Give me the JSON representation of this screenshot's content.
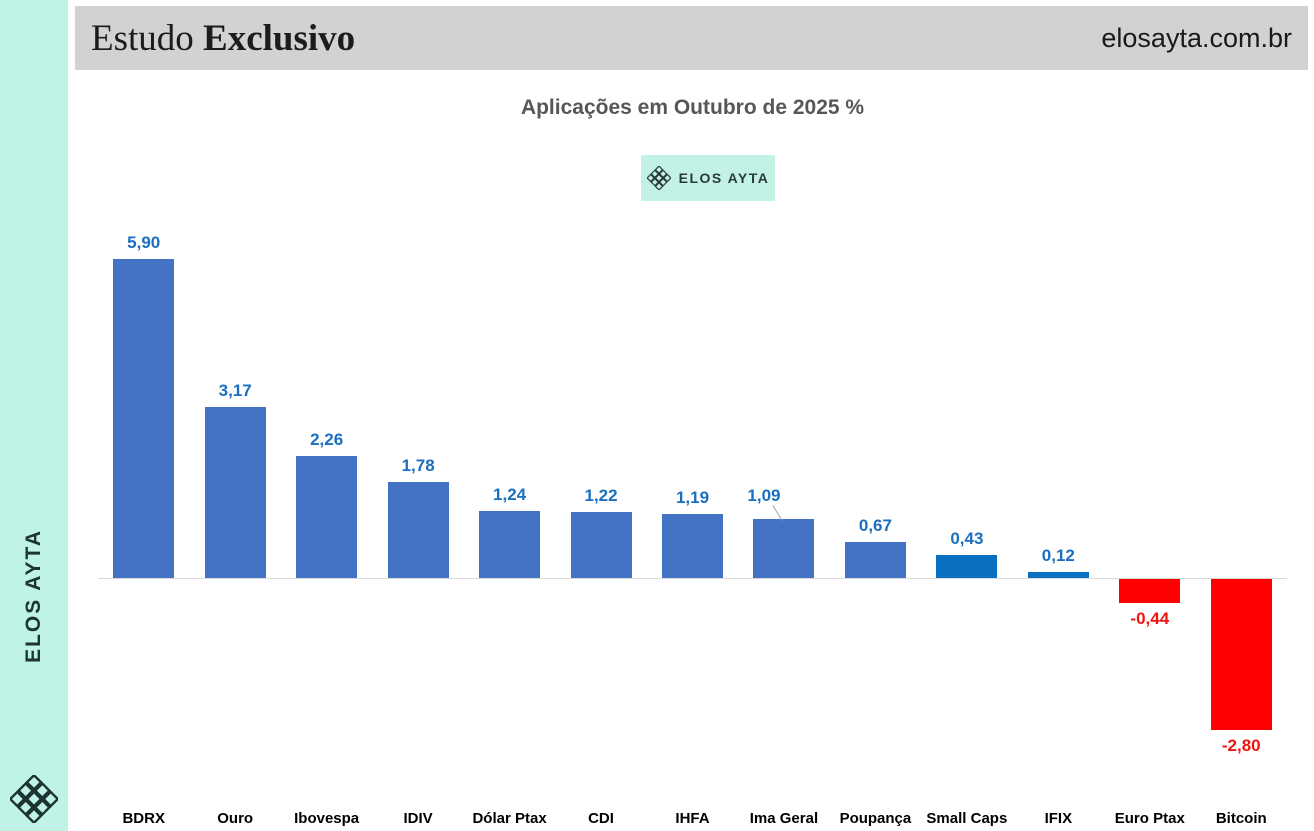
{
  "sidebar": {
    "brand": "ELOS AYTA",
    "logo_icon": "woven-diamond-lattice",
    "bg": "#bff3e6"
  },
  "header": {
    "title_regular": "Estudo ",
    "title_bold": "Exclusivo",
    "site": "elosayta.com.br",
    "bg": "#d2d2d2"
  },
  "badge": {
    "label": "ELOS AYTA",
    "logo_icon": "woven-diamond-lattice",
    "bg": "#c2f2e5"
  },
  "chart_data": {
    "type": "bar",
    "title": "Aplicações em Outubro de 2025 %",
    "categories": [
      "BDRX",
      "Ouro",
      "Ibovespa",
      "IDIV",
      "Dólar Ptax",
      "CDI",
      "IHFA",
      "Ima Geral",
      "Poupança",
      "Small Caps",
      "IFIX",
      "Euro Ptax",
      "Bitcoin"
    ],
    "values": [
      5.9,
      3.17,
      2.26,
      1.78,
      1.24,
      1.22,
      1.19,
      1.09,
      0.67,
      0.43,
      0.12,
      -0.44,
      -2.8
    ],
    "value_labels": [
      "5,90",
      "3,17",
      "2,26",
      "1,78",
      "1,24",
      "1,22",
      "1,19",
      "1,09",
      "0,67",
      "0,43",
      "0,12",
      "-0,44",
      "-2,80"
    ],
    "bar_colors": [
      "#4472C4",
      "#4472C4",
      "#4472C4",
      "#4472C4",
      "#4472C4",
      "#4472C4",
      "#4472C4",
      "#4472C4",
      "#4472C4",
      "#0a70c2",
      "#0a70c2",
      "#ff0000",
      "#ff0000"
    ],
    "label_colors": [
      "#1b6fc0",
      "#1b6fc0",
      "#1b6fc0",
      "#1b6fc0",
      "#1b6fc0",
      "#1b6fc0",
      "#1b6fc0",
      "#1b6fc0",
      "#1b6fc0",
      "#1b6fc0",
      "#1b6fc0",
      "#ee1511",
      "#ee1511"
    ],
    "leader_line_index": 7,
    "xlabel": "",
    "ylabel": "",
    "ylim": [
      -3.2,
      6.5
    ],
    "grid": false,
    "legend": false,
    "axis_color": "#d9d9d9"
  }
}
